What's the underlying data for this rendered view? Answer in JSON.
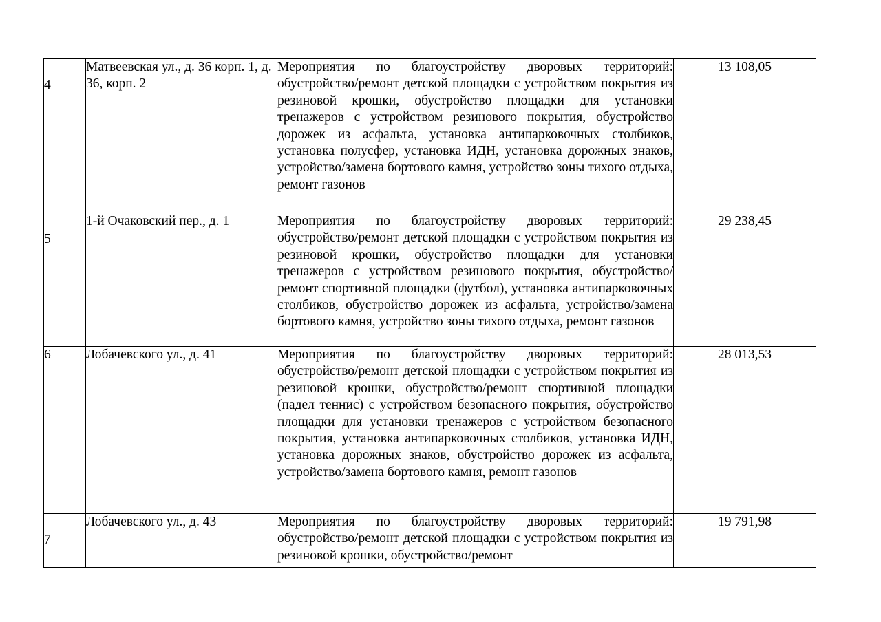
{
  "table": {
    "rows": [
      {
        "num": "4",
        "hanging_num": "4",
        "address": "Матвеевская ул., д. 36 корп. 1, д. 36, корп. 2",
        "description": "Мероприятия по благоустройству дворовых территорий: обустройство/ремонт детской площадки с устройством покрытия из резиновой крошки, обустройство площадки для установки тренажеров с устройством резинового покрытия, обустройство дорожек из асфальта, установка антипарковочных столбиков, установка полусфер, установка ИДН, установка дорожных знаков, устройство/замена бортового камня, устройство зоны тихого отдыха, ремонт газонов",
        "amount": "13 108,05"
      },
      {
        "num": "5",
        "hanging_num": "5",
        "address": "1-й Очаковский пер., д. 1",
        "description": "Мероприятия по благоустройству дворовых территорий: обустройство/ремонт детской площадки с устройством покрытия из резиновой крошки, обустройство площадки для установки тренажеров с устройством резинового покрытия, обустройство/ремонт спортивной площадки (футбол), установка антипарковочных столбиков, обустройство дорожек из асфальта, устройство/замена бортового камня, устройство зоны тихого отдыха, ремонт газонов",
        "amount": "29 238,45"
      },
      {
        "num": "6",
        "address": "Лобачевского ул., д. 41",
        "description": "Мероприятия по благоустройству дворовых территорий: обустройство/ремонт детской площадки с устройством покрытия из резиновой крошки, обустройство/ремонт спортивной площадки (падел теннис) с устройством безопасного покрытия, обустройство площадки для установки тренажеров с устройством безопасного покрытия, установка антипарковочных столбиков, установка ИДН, установка дорожных знаков, обустройство дорожек из асфальта, устройство/замена бортового камня, ремонт газонов",
        "amount": "28 013,53"
      },
      {
        "num": "7",
        "hanging_num": "7",
        "address": "Лобачевского ул., д. 43",
        "description": "Мероприятия по благоустройству дворовых территорий: обустройство/ремонт детской площадки с устройством покрытия из резиновой крошки, обустройство/ремонт",
        "amount": "19 791,98"
      }
    ]
  }
}
